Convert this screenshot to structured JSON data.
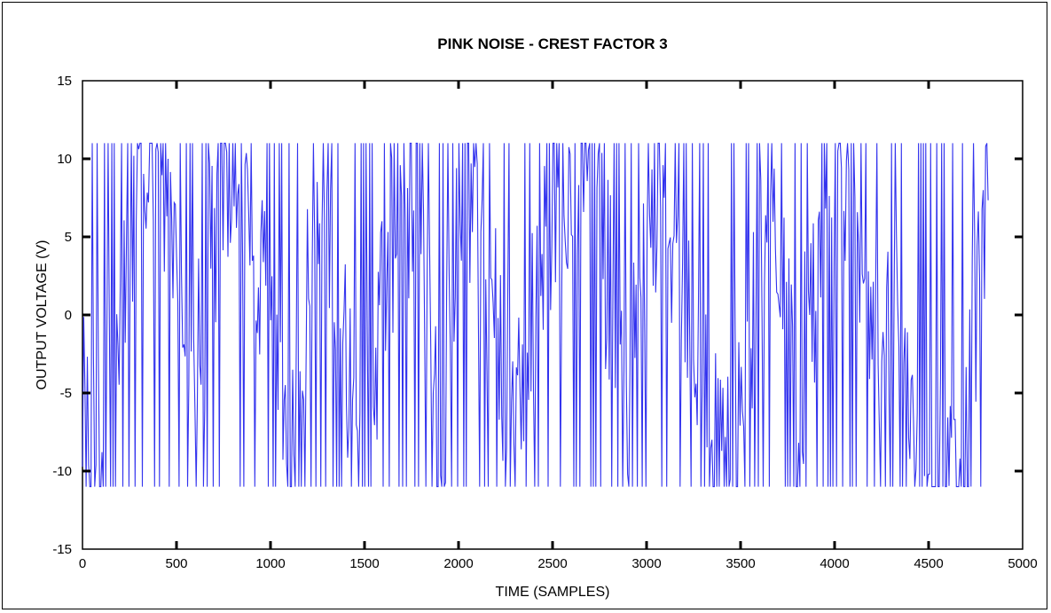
{
  "chart_data": {
    "type": "line",
    "title": "PINK NOISE - CREST FACTOR 3",
    "xlabel": "TIME (SAMPLES)",
    "ylabel": "OUTPUT VOLTAGE (V)",
    "xlim": [
      0,
      5000
    ],
    "ylim": [
      -15,
      15
    ],
    "x_ticks": [
      0,
      500,
      1000,
      1500,
      2000,
      2500,
      3000,
      3500,
      4000,
      4500,
      5000
    ],
    "y_ticks": [
      -15,
      -10,
      -5,
      0,
      5,
      10,
      15
    ],
    "x_tick_labels": [
      "0",
      "500",
      "1000",
      "1500",
      "2000",
      "2500",
      "3000",
      "3500",
      "4000",
      "4500",
      "5000"
    ],
    "y_tick_labels": [
      "-15",
      "-10",
      "-5",
      "0",
      "5",
      "10",
      "15"
    ],
    "grid": false,
    "series": [
      {
        "color": "#3333ee",
        "x_start": 0,
        "x_end": 4820,
        "clip_max": 11,
        "clip_min": -11,
        "note_shape": "rapidly oscillating signal clipped at +11 V and -11 V",
        "envelope_x": [
          0,
          100,
          200,
          300,
          400,
          500,
          600,
          700,
          800,
          900,
          1000,
          1100,
          1200,
          1300,
          1400,
          1500,
          1600,
          1700,
          1800,
          1900,
          2000,
          2100,
          2200,
          2300,
          2400,
          2500,
          2600,
          2700,
          2800,
          2900,
          3000,
          3100,
          3200,
          3300,
          3400,
          3500,
          3600,
          3700,
          3800,
          3900,
          4000,
          4100,
          4200,
          4300,
          4400,
          4500,
          4600,
          4700,
          4820
        ],
        "envelope_y": [
          -7,
          -8,
          3,
          10,
          8,
          4,
          -4,
          5,
          9,
          4,
          -2,
          -8,
          3,
          7,
          -3,
          -8,
          2,
          9,
          6,
          -10,
          8,
          6,
          0,
          -7,
          0,
          5,
          9,
          7,
          2,
          -4,
          4,
          9,
          0,
          -6,
          -9,
          -4,
          4,
          6,
          -6,
          2,
          8,
          3,
          -2,
          0,
          -6,
          -8,
          -10,
          -8,
          10
        ]
      }
    ]
  }
}
